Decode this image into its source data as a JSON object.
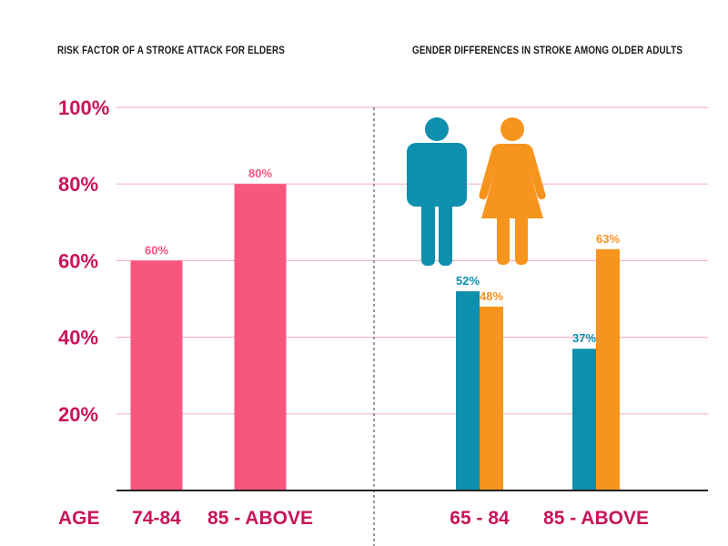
{
  "chart_data": [
    {
      "type": "bar",
      "title": "RISK FACTOR OF A STROKE ATTACK FOR ELDERS",
      "xlabel": "AGE",
      "ylabel": "",
      "ylim": [
        0,
        100
      ],
      "yticks": [
        "20%",
        "40%",
        "60%",
        "80%",
        "100%"
      ],
      "categories": [
        "74-84",
        "85 - ABOVE"
      ],
      "values": [
        60,
        80
      ],
      "data_labels": [
        "60%",
        "80%"
      ]
    },
    {
      "type": "bar",
      "title": "GENDER DIFFERENCES IN STROKE AMONG OLDER ADULTS",
      "ylim": [
        0,
        100
      ],
      "categories": [
        "65 - 84",
        "85 - ABOVE"
      ],
      "series": [
        {
          "name": "Male",
          "values": [
            52,
            37
          ],
          "data_labels": [
            "52%",
            "37%"
          ]
        },
        {
          "name": "Female",
          "values": [
            48,
            63
          ],
          "data_labels": [
            "48%",
            "63%"
          ]
        }
      ]
    }
  ],
  "colors": {
    "pink": "#f7567f",
    "male": "#0e8fae",
    "female": "#f7941d",
    "axis_text": "#c8145a",
    "grid": "#f4b6c9",
    "baseline": "#222222"
  },
  "icons": [
    "male-figure-icon",
    "female-figure-icon"
  ]
}
